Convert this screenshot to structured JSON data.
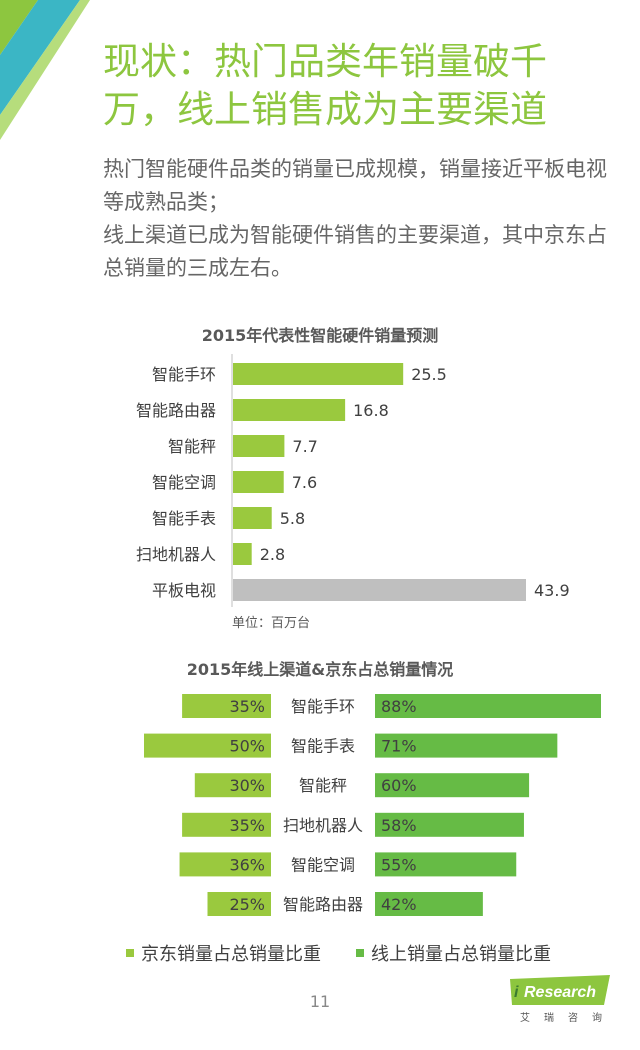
{
  "page": {
    "title_line1": "现状：热门品类年销量破千",
    "title_line2": "万，线上销售成为主要渠道",
    "desc": [
      "热门智能硬件品类的销量已成规模，销量接近平板电视等成熟品类；",
      "线上渠道已成为智能硬件销售的主要渠道，其中京东占总销量的三成左右。"
    ],
    "page_number": "11",
    "logo_i": "i",
    "logo_text": "Research",
    "logo_sub": "艾瑞咨询",
    "colors": {
      "accent": "#8dc63f",
      "bar_main": "#9ac93e",
      "bar_gray": "#bfbfbf",
      "bar_jd": "#9ac93e",
      "bar_online": "#66bb45",
      "corner_teal": "#3bb6c5",
      "corner_green": "#8dc63f"
    }
  },
  "chart_data": [
    {
      "type": "bar",
      "orientation": "horizontal",
      "title": "2015年代表性智能硬件销量预测",
      "unit_label": "单位：百万台",
      "categories": [
        "智能手环",
        "智能路由器",
        "智能秤",
        "智能空调",
        "智能手表",
        "扫地机器人",
        "平板电视"
      ],
      "values": [
        25.5,
        16.8,
        7.7,
        7.6,
        5.8,
        2.8,
        43.9
      ],
      "value_labels": [
        "25.5",
        "16.8",
        "7.7",
        "7.6",
        "5.8",
        "2.8",
        "43.9"
      ],
      "highlight_gray": [
        "平板电视"
      ],
      "xlim": [
        0,
        43.9
      ]
    },
    {
      "type": "bar",
      "orientation": "horizontal-butterfly",
      "title": "2015年线上渠道&京东占总销量情况",
      "categories": [
        "智能手环",
        "智能手表",
        "智能秤",
        "扫地机器人",
        "智能空调",
        "智能路由器"
      ],
      "series": [
        {
          "name": "京东销量占总销量比重",
          "values": [
            35,
            50,
            30,
            35,
            36,
            25
          ],
          "labels": [
            "35%",
            "50%",
            "30%",
            "35%",
            "36%",
            "25%"
          ]
        },
        {
          "name": "线上销量占总销量比重",
          "values": [
            88,
            71,
            60,
            58,
            55,
            42
          ],
          "labels": [
            "88%",
            "71%",
            "60%",
            "58%",
            "55%",
            "42%"
          ]
        }
      ],
      "legend_position": "bottom"
    }
  ]
}
